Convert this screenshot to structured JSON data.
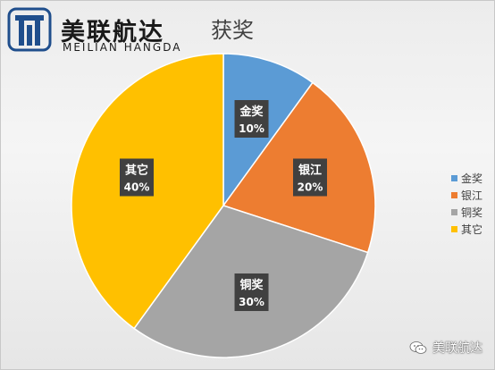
{
  "brand": {
    "name_cn": "美联航达",
    "name_en": "MEILIAN HANGDA"
  },
  "watermark": {
    "text": "美联航达",
    "icon": "wechat-icon"
  },
  "chart_data": {
    "type": "pie",
    "title": "获奖",
    "legend_position": "right",
    "categories": [
      "金奖",
      "银江",
      "铜奖",
      "其它"
    ],
    "values": [
      10,
      20,
      30,
      40
    ],
    "labels": [
      "10%",
      "20%",
      "30%",
      "40%"
    ],
    "colors": [
      "#5b9bd5",
      "#ed7d31",
      "#a5a5a5",
      "#ffc000"
    ]
  }
}
